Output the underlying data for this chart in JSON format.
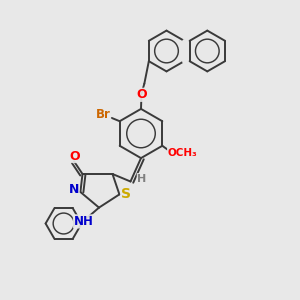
{
  "bg_color": "#e8e8e8",
  "bond_color": "#3a3a3a",
  "atom_colors": {
    "O": "#ff0000",
    "N": "#0000cc",
    "S": "#ccaa00",
    "Br": "#cc6600",
    "H": "#808080",
    "C": "#3a3a3a"
  },
  "figsize": [
    3.0,
    3.0
  ],
  "dpi": 100
}
